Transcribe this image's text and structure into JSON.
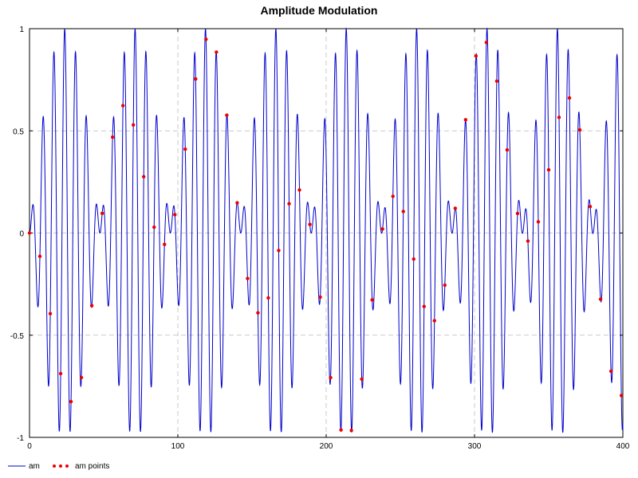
{
  "chart_data": {
    "type": "line",
    "title": "Amplitude Modulation",
    "xlabel": "",
    "ylabel": "",
    "xlim": [
      0,
      400
    ],
    "ylim": [
      -1,
      1
    ],
    "x_ticks": [
      0,
      100,
      200,
      300,
      400
    ],
    "x_tick_labels": [
      "0",
      "100",
      "200",
      "300",
      "400"
    ],
    "y_ticks": [
      -1,
      -0.5,
      0,
      0.5,
      1
    ],
    "y_tick_labels": [
      "-1",
      "-0.5",
      "0",
      "0.5",
      "1"
    ],
    "grid": true,
    "legend_position": "bottom-left",
    "series": [
      {
        "name": "am",
        "style": "line",
        "color": "#0000cc",
        "function": "am",
        "carrier_period": 7.3,
        "modulation_period": 95.0,
        "x_start": 0,
        "x_end": 400
      },
      {
        "name": "am points",
        "style": "points",
        "color": "#ee0000",
        "x_start": 0,
        "x_end": 400,
        "x_step": 7
      }
    ]
  }
}
